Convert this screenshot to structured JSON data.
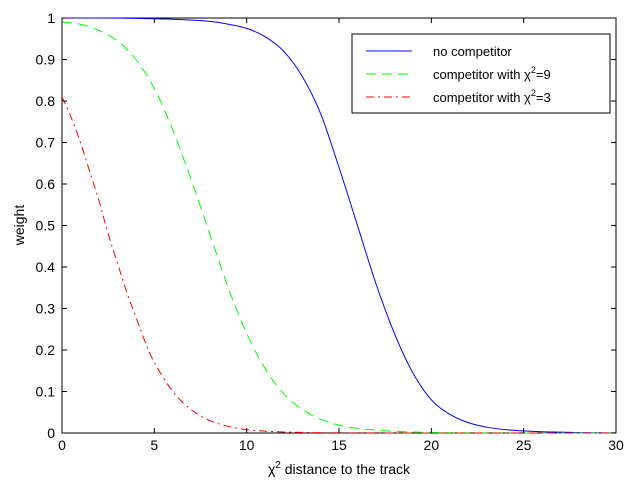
{
  "chart_data": {
    "type": "line",
    "title": "",
    "xlabel": "χ",
    "xlabel_sup": "2",
    "xlabel_rest": " distance to the track",
    "ylabel": "weight",
    "xlim": [
      0,
      30
    ],
    "ylim": [
      0,
      1
    ],
    "xticks": [
      0,
      5,
      10,
      15,
      20,
      25,
      30
    ],
    "yticks": [
      0,
      0.1,
      0.2,
      0.3,
      0.4,
      0.5,
      0.6,
      0.7,
      0.8,
      0.9,
      1
    ],
    "grid": false,
    "legend_position": "top-right",
    "series": [
      {
        "name": "no competitor",
        "name_parts": [
          "no competitor"
        ],
        "color": "#0000ff",
        "dash": "solid",
        "x": [
          0,
          2,
          4,
          6,
          8,
          9,
          10,
          11,
          12,
          13,
          14,
          15,
          16,
          17,
          18,
          19,
          20,
          21,
          22,
          23,
          24,
          25,
          26,
          27,
          28,
          29,
          30
        ],
        "y": [
          1.0,
          1.0,
          0.999,
          0.997,
          0.992,
          0.985,
          0.975,
          0.955,
          0.92,
          0.86,
          0.77,
          0.64,
          0.5,
          0.36,
          0.24,
          0.145,
          0.08,
          0.045,
          0.025,
          0.014,
          0.008,
          0.005,
          0.003,
          0.002,
          0.001,
          0.0005,
          0.0002
        ]
      },
      {
        "name": "competitor with χ2=9",
        "name_parts": [
          "competitor with χ",
          "2",
          "=9"
        ],
        "color": "#00ff00",
        "dash": "dashed",
        "x": [
          0,
          1,
          2,
          3,
          4,
          5,
          6,
          7,
          8,
          9,
          10,
          11,
          12,
          13,
          14,
          15,
          16,
          18,
          20,
          22,
          25,
          30
        ],
        "y": [
          0.99,
          0.985,
          0.97,
          0.945,
          0.9,
          0.83,
          0.73,
          0.61,
          0.48,
          0.35,
          0.24,
          0.155,
          0.095,
          0.057,
          0.033,
          0.019,
          0.011,
          0.004,
          0.0015,
          0.0005,
          0.0001,
          0.0
        ]
      },
      {
        "name": "competitor with χ2=3",
        "name_parts": [
          "competitor with χ",
          "2",
          "=3"
        ],
        "color": "#ff0000",
        "dash": "dashdot",
        "x": [
          0,
          0.5,
          1,
          1.5,
          2,
          2.5,
          3,
          3.5,
          4,
          4.5,
          5,
          6,
          7,
          8,
          9,
          10,
          11,
          12,
          13,
          14,
          15,
          17,
          20,
          25,
          30
        ],
        "y": [
          0.81,
          0.76,
          0.7,
          0.63,
          0.56,
          0.48,
          0.41,
          0.34,
          0.28,
          0.22,
          0.17,
          0.1,
          0.056,
          0.03,
          0.016,
          0.008,
          0.0045,
          0.0025,
          0.0015,
          0.0008,
          0.0005,
          0.0002,
          0.0,
          0.0,
          0.0
        ]
      }
    ]
  }
}
